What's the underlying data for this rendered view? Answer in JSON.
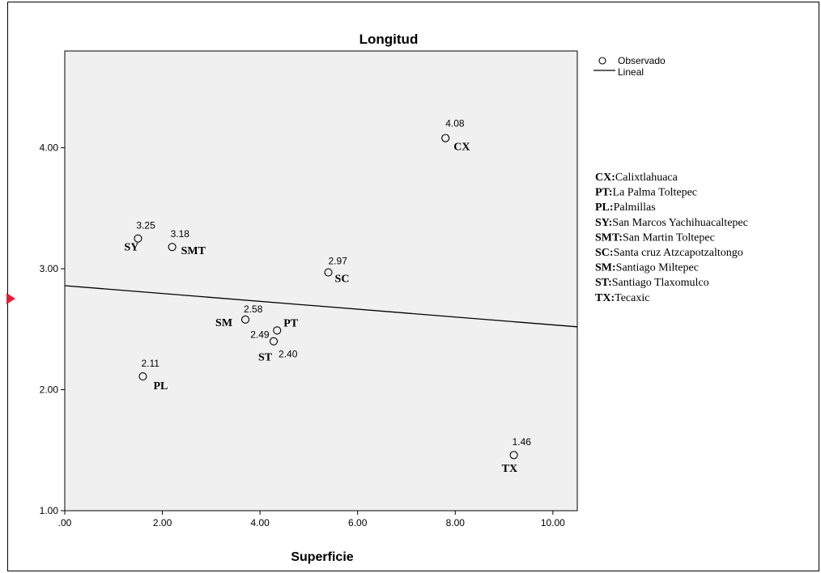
{
  "chart_data": {
    "type": "scatter",
    "title": "Longitud",
    "xlabel": "Superficie",
    "ylabel": "",
    "xlim": [
      0,
      10.5
    ],
    "ylim": [
      1.0,
      4.8
    ],
    "x_ticks": [
      ".00",
      "2.00",
      "4.00",
      "6.00",
      "8.00",
      "10.00"
    ],
    "y_ticks": [
      "1.00",
      "2.00",
      "3.00",
      "4.00"
    ],
    "grid": false,
    "legend_position": "right",
    "legend": [
      {
        "label": "Observado",
        "kind": "circle"
      },
      {
        "label": "Lineal",
        "kind": "line"
      }
    ],
    "points": [
      {
        "code": "CX",
        "x": 7.8,
        "y": 4.08,
        "value_label": "4.08"
      },
      {
        "code": "SY",
        "x": 1.5,
        "y": 3.25,
        "value_label": "3.25"
      },
      {
        "code": "SMT",
        "x": 2.2,
        "y": 3.18,
        "value_label": "3.18"
      },
      {
        "code": "SC",
        "x": 5.4,
        "y": 2.97,
        "value_label": "2.97"
      },
      {
        "code": "SM",
        "x": 3.7,
        "y": 2.58,
        "value_label": "2.58"
      },
      {
        "code": "PT",
        "x": 4.35,
        "y": 2.49,
        "value_label": "2.49"
      },
      {
        "code": "ST",
        "x": 4.28,
        "y": 2.4,
        "value_label": "2.40"
      },
      {
        "code": "PL",
        "x": 1.6,
        "y": 2.11,
        "value_label": "2.11"
      },
      {
        "code": "TX",
        "x": 9.2,
        "y": 1.46,
        "value_label": "1.46"
      }
    ],
    "fit_line": {
      "name": "Lineal",
      "x": [
        0,
        10.5
      ],
      "y": [
        2.86,
        2.52
      ]
    },
    "key": [
      {
        "code": "CX:",
        "name": "Calixtlahuaca"
      },
      {
        "code": "PT:",
        "name": "La Palma Toltepec"
      },
      {
        "code": "PL:",
        "name": "Palmillas"
      },
      {
        "code": "SY:",
        "name": "San Marcos Yachihuacaltepec"
      },
      {
        "code": "SMT:",
        "name": "San Martin Toltepec"
      },
      {
        "code": "SC:",
        "name": "Santa cruz Atzcapotzaltongo"
      },
      {
        "code": "SM:",
        "name": "Santiago Miltepec"
      },
      {
        "code": "ST:",
        "name": "Santiago Tlaxomulco"
      },
      {
        "code": "TX:",
        "name": "Tecaxic"
      }
    ],
    "colors": {
      "plot_bg": "#f0f0f0",
      "axis": "#000000",
      "marker": "#000000",
      "arrow": "#e0203a"
    }
  }
}
